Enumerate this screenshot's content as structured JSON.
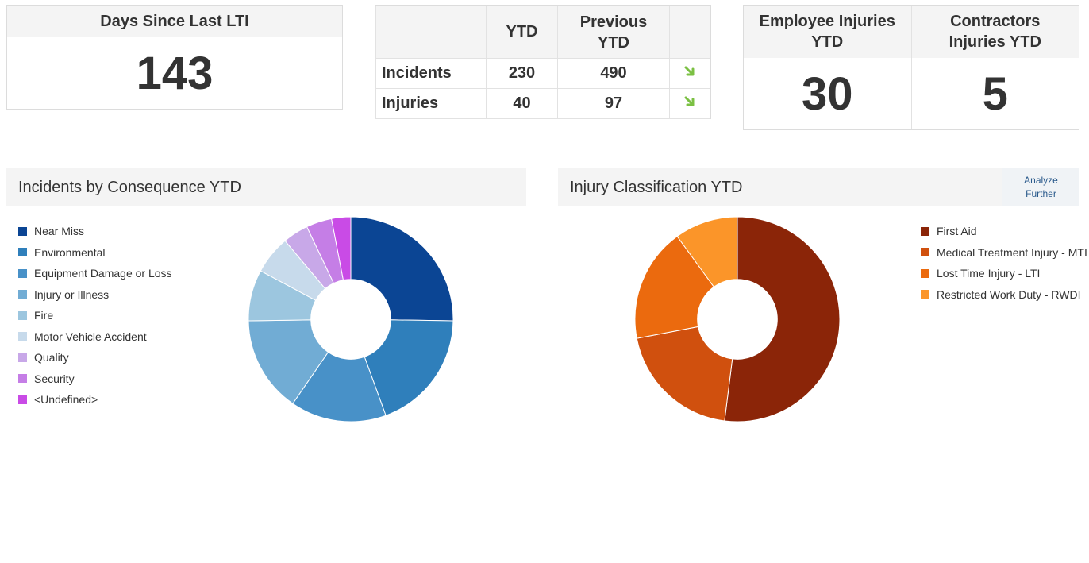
{
  "lti": {
    "title": "Days Since Last LTI",
    "value": "143"
  },
  "ytd_table": {
    "headers": [
      "",
      "YTD",
      "Previous YTD",
      ""
    ],
    "rows": [
      {
        "label": "Incidents",
        "ytd": "230",
        "prev": "490",
        "trend": "down-arrow-icon"
      },
      {
        "label": "Injuries",
        "ytd": "40",
        "prev": "97",
        "trend": "down-arrow-icon"
      }
    ],
    "arrow_color": "#7bc043"
  },
  "injuries": {
    "employee": {
      "title": "Employee Injuries YTD",
      "value": "30"
    },
    "contractors": {
      "title": "Contractors Injuries YTD",
      "value": "5"
    }
  },
  "panels": {
    "consequence": {
      "title": "Incidents by Consequence YTD"
    },
    "classification": {
      "title": "Injury Classification YTD",
      "analyze_label": "Analyze Further"
    }
  },
  "chart_data": [
    {
      "type": "pie",
      "title": "Incidents by Consequence YTD",
      "categories": [
        "Near Miss",
        "Environmental",
        "Equipment Damage or Loss",
        "Injury or Illness",
        "Fire",
        "Motor Vehicle Accident",
        "Quality",
        "Security",
        "<Undefined>"
      ],
      "values": [
        25,
        19,
        15,
        15,
        8,
        6,
        4,
        4,
        3
      ],
      "colors": [
        "#0b4594",
        "#2f7fbb",
        "#4891c8",
        "#71acd4",
        "#9cc6df",
        "#c7daeb",
        "#c8a8e8",
        "#c57ee6",
        "#c94be6"
      ],
      "inner_radius_ratio": 0.39,
      "legend": "left"
    },
    {
      "type": "pie",
      "title": "Injury Classification YTD",
      "categories": [
        "First Aid",
        "Medical Treatment Injury - MTI",
        "Lost Time Injury - LTI",
        "Restricted Work Duty - RWDI"
      ],
      "values": [
        52,
        20,
        18,
        10
      ],
      "colors": [
        "#8b2508",
        "#d0500e",
        "#eb6a0e",
        "#fb9529"
      ],
      "inner_radius_ratio": 0.39,
      "legend": "right"
    }
  ]
}
